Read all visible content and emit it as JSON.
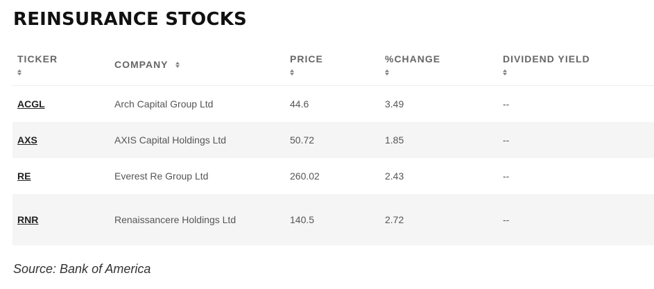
{
  "title": "REINSURANCE STOCKS",
  "table": {
    "columns": [
      {
        "label": "TICKER",
        "sortable": true
      },
      {
        "label": "COMPANY",
        "sortable": true
      },
      {
        "label": "PRICE",
        "sortable": true
      },
      {
        "label": "%CHANGE",
        "sortable": true
      },
      {
        "label": "DIVIDEND YIELD",
        "sortable": true
      }
    ],
    "rows": [
      {
        "ticker": "ACGL",
        "company": "Arch Capital Group Ltd",
        "price": "44.6",
        "change": "3.49",
        "dividend_yield": "--"
      },
      {
        "ticker": "AXS",
        "company": "AXIS Capital Holdings Ltd",
        "price": "50.72",
        "change": "1.85",
        "dividend_yield": "--"
      },
      {
        "ticker": "RE",
        "company": "Everest Re Group Ltd",
        "price": "260.02",
        "change": "2.43",
        "dividend_yield": "--"
      },
      {
        "ticker": "RNR",
        "company": "Renaissancere Holdings Ltd",
        "price": "140.5",
        "change": "2.72",
        "dividend_yield": "--"
      }
    ]
  },
  "source": "Source: Bank of America",
  "colors": {
    "row_shade": "#f5f5f5",
    "title": "#111111",
    "text": "#555555"
  }
}
